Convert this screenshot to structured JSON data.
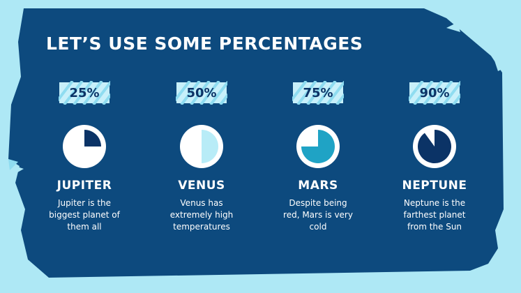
{
  "title": "LET’S USE SOME PERCENTAGES",
  "colors": {
    "background": "#aee8f5",
    "panel": "#0d4a7e",
    "pie_bg": "#ffffff",
    "badge_stripe": "#8fdcf0",
    "badge_light": "#c8f0fa",
    "text_dark": "#0b3366"
  },
  "items": [
    {
      "percent": "25%",
      "value": 25,
      "slice_color": "#0b3366",
      "title": "JUPITER",
      "description": "Jupiter is the biggest planet of them all"
    },
    {
      "percent": "50%",
      "value": 50,
      "slice_color": "#b8ecf7",
      "title": "VENUS",
      "description": "Venus has extremely high temperatures"
    },
    {
      "percent": "75%",
      "value": 75,
      "slice_color": "#1fa3c5",
      "title": "MARS",
      "description": "Despite being red, Mars is very cold"
    },
    {
      "percent": "90%",
      "value": 90,
      "slice_color": "#0b3366",
      "title": "NEPTUNE",
      "description": "Neptune is the farthest planet from the Sun"
    }
  ]
}
